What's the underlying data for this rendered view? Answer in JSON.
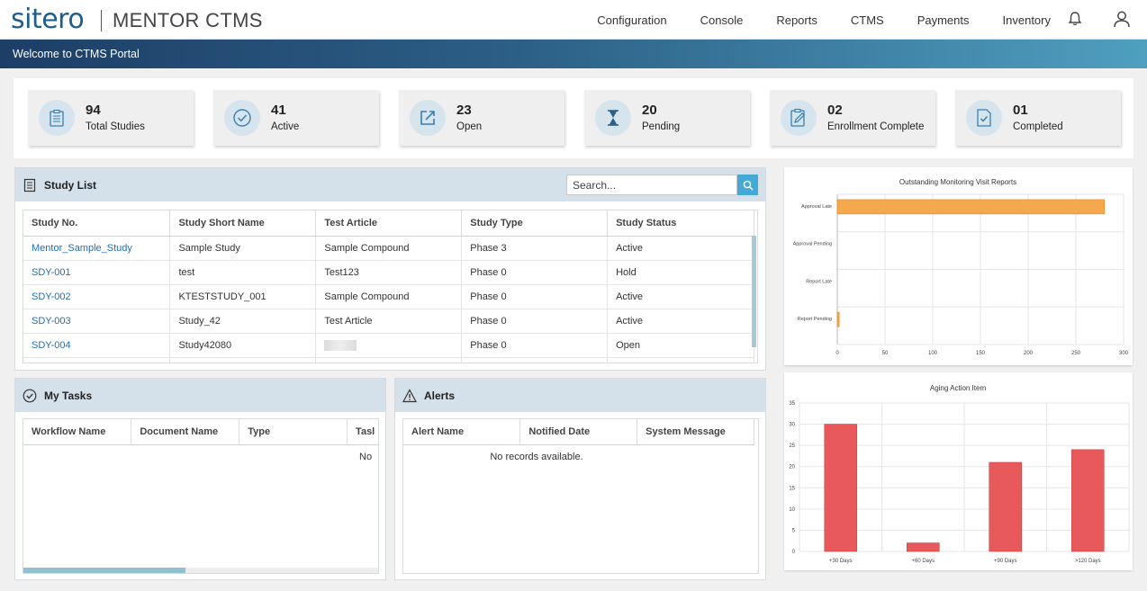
{
  "header": {
    "logo": "sitero",
    "product": "MENTOR CTMS",
    "nav": [
      "Configuration",
      "Console",
      "Reports",
      "CTMS",
      "Payments",
      "Inventory"
    ]
  },
  "banner": "Welcome to CTMS Portal",
  "stats": [
    {
      "value": "94",
      "label": "Total Studies",
      "icon": "clipboard-list-icon"
    },
    {
      "value": "41",
      "label": "Active",
      "icon": "check-circle-icon"
    },
    {
      "value": "23",
      "label": "Open",
      "icon": "external-link-icon"
    },
    {
      "value": "20",
      "label": "Pending",
      "icon": "hourglass-icon"
    },
    {
      "value": "02",
      "label": "Enrollment Complete",
      "icon": "clipboard-edit-icon"
    },
    {
      "value": "01",
      "label": "Completed",
      "icon": "document-check-icon"
    }
  ],
  "study_list": {
    "title": "Study List",
    "search_placeholder": "Search...",
    "columns": [
      "Study No.",
      "Study Short Name",
      "Test Article",
      "Study Type",
      "Study Status"
    ],
    "rows": [
      [
        "Mentor_Sample_Study",
        "Sample Study",
        "Sample Compound",
        "Phase 3",
        "Active"
      ],
      [
        "SDY-001",
        "test",
        "Test123",
        "Phase 0",
        "Hold"
      ],
      [
        "SDY-002",
        "KTESTSTUDY_001",
        "Sample Compound",
        "Phase 0",
        "Active"
      ],
      [
        "SDY-003",
        "Study_42",
        "Test Article",
        "Phase 0",
        "Active"
      ],
      [
        "SDY-004",
        "Study42080",
        "",
        "Phase 0",
        "Open"
      ]
    ]
  },
  "my_tasks": {
    "title": "My Tasks",
    "columns": [
      "Workflow Name",
      "Document Name",
      "Type",
      "Tasl"
    ],
    "empty": "No"
  },
  "alerts": {
    "title": "Alerts",
    "columns": [
      "Alert Name",
      "Notified Date",
      "System Message"
    ],
    "empty": "No records available."
  },
  "chart_data": [
    {
      "type": "bar",
      "orientation": "horizontal",
      "title": "Outstanding Monitoring Visit Reports",
      "categories": [
        "Approval Late",
        "Approval Pending",
        "Report Late",
        "Report Pending"
      ],
      "values": [
        280,
        0,
        0,
        2
      ],
      "xlim": [
        0,
        300
      ],
      "xticks": [
        "0",
        "50",
        "100",
        "150",
        "200",
        "250",
        "300"
      ],
      "color": "#f5a94d",
      "grid": true
    },
    {
      "type": "bar",
      "title": "Aging Action Item",
      "categories": [
        "+30 Days",
        "+60 Days",
        "+90 Days",
        ">120 Days"
      ],
      "values": [
        30,
        2,
        21,
        24
      ],
      "ylim": [
        0,
        35
      ],
      "yticks": [
        "0",
        "5",
        "10",
        "15",
        "20",
        "25",
        "30",
        "35"
      ],
      "color": "#e8595b",
      "grid": true
    }
  ]
}
